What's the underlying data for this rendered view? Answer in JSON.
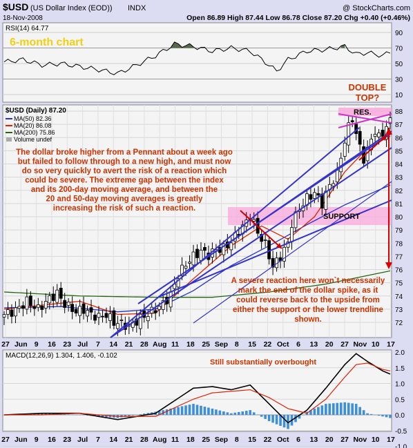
{
  "header": {
    "symbol": "$USD",
    "name": "(US Dollar Index (EOD))",
    "exchange": "INDX",
    "date": "18-Nov-2008",
    "copyright": "@ StockCharts.com",
    "ohlc": "Open 86.89  High 87.44  Low 86.78  Close 87.20  Chg +0.40 (+0.46%)"
  },
  "colors": {
    "background": "#dcdcf2",
    "panel": "#f4f4f4",
    "trendline": "#3333cc",
    "red_arrow": "#dd0000",
    "annotation": "#cc3300",
    "zone": "#f9a8dc",
    "ma50": "#2233cc",
    "ma20": "#dd2200",
    "ma200": "#226611",
    "histogram": "#3d8fd9"
  },
  "rsi_panel": {
    "label": "RSI(14) 64.77",
    "title_note": "6-month chart",
    "ticks": [
      90,
      70,
      50,
      30,
      10
    ]
  },
  "price_panel": {
    "label": "$USD (Daily) 87.20",
    "legend": [
      "MA(50) 82.36",
      "MA(20) 86.08",
      "MA(200) 75.86",
      "Volume undef"
    ],
    "y_ticks": [
      88,
      87,
      86,
      85,
      84,
      83,
      82,
      81,
      80,
      79,
      78,
      77,
      76,
      75,
      74,
      73,
      72
    ],
    "double_top": "DOUBLE TOP?",
    "res_label": "RES.",
    "support_label": "SUPPORT",
    "commentary": [
      "The dollar broke higher from a Pennant about a week ago",
      "but failed to follow through to a new high, and must now",
      "do so very quickly to avert the risk of a reaction which",
      "could be severe. The extreme gap between the index",
      "and its 200-day moving average, and between the",
      "20 and 50-day moving averages is greatly",
      "increasing the risk of such a reaction."
    ],
    "reaction_note": [
      "A severe reaction here won`t necessarily",
      "mark the end of the dollar spike, as it",
      "could reverse back to the upside from",
      "either the support or the lower trendline",
      "shown."
    ]
  },
  "macd_panel": {
    "label": "MACD(12,26,9) 1.304, 1.406, -0.102",
    "note": "Still substantially overbought",
    "ticks": [
      "2.0",
      "1.5",
      "1.0",
      "0.5",
      "0.0",
      "-0.5",
      "-1.0"
    ]
  },
  "x_axis_labels": [
    "27",
    "Jun",
    "9",
    "16",
    "23",
    "Jul",
    "7",
    "14",
    "21",
    "28",
    "Aug",
    "11",
    "18",
    "25",
    "Sep",
    "8",
    "15",
    "22",
    "Oct",
    "6",
    "13",
    "20",
    "27",
    "Nov",
    "10",
    "17"
  ],
  "chart_data": {
    "type": "candlestick",
    "title": "$USD (Daily) 87.20",
    "period": "6-month chart",
    "ylim": [
      71,
      88.5
    ],
    "series": [
      {
        "name": "$USD close",
        "points": [
          [
            0,
            72.6
          ],
          [
            3,
            72.9
          ],
          [
            6,
            73.6
          ],
          [
            9,
            73.0
          ],
          [
            12,
            73.8
          ],
          [
            14,
            74.2
          ],
          [
            16,
            73.4
          ],
          [
            19,
            72.8
          ],
          [
            21,
            73.0
          ],
          [
            23,
            72.6
          ],
          [
            25,
            72.4
          ],
          [
            27,
            72.6
          ],
          [
            29,
            72.0
          ],
          [
            31,
            71.9
          ],
          [
            33,
            71.7
          ],
          [
            36,
            72.3
          ],
          [
            39,
            72.8
          ],
          [
            42,
            73.4
          ],
          [
            44,
            74.1
          ],
          [
            46,
            75.6
          ],
          [
            48,
            76.4
          ],
          [
            50,
            77.0
          ],
          [
            52,
            77.4
          ],
          [
            54,
            77.1
          ],
          [
            56,
            77.5
          ],
          [
            58,
            77.6
          ],
          [
            60,
            78.1
          ],
          [
            62,
            78.9
          ],
          [
            64,
            79.6
          ],
          [
            65,
            80.1
          ],
          [
            66,
            79.5
          ],
          [
            67,
            78.8
          ],
          [
            69,
            77.9
          ],
          [
            71,
            76.2
          ],
          [
            73,
            77.0
          ],
          [
            75,
            78.0
          ],
          [
            76,
            79.5
          ],
          [
            78,
            80.6
          ],
          [
            80,
            81.4
          ],
          [
            82,
            81.8
          ],
          [
            84,
            81.0
          ],
          [
            86,
            82.4
          ],
          [
            88,
            83.2
          ],
          [
            89,
            84.6
          ],
          [
            90,
            85.7
          ],
          [
            91,
            86.8
          ],
          [
            92,
            87.5
          ],
          [
            93,
            86.2
          ],
          [
            94,
            85.3
          ],
          [
            95,
            84.4
          ],
          [
            96,
            85.0
          ],
          [
            97,
            85.9
          ],
          [
            98,
            86.5
          ],
          [
            99,
            86.0
          ],
          [
            100,
            86.3
          ],
          [
            101,
            86.9
          ],
          [
            102,
            87.2
          ]
        ]
      },
      {
        "name": "MA(50) 82.36",
        "points": [
          [
            0,
            73.1
          ],
          [
            15,
            73.2
          ],
          [
            30,
            72.8
          ],
          [
            40,
            73.0
          ],
          [
            50,
            74.4
          ],
          [
            60,
            76.3
          ],
          [
            70,
            77.8
          ],
          [
            80,
            79.4
          ],
          [
            90,
            80.9
          ],
          [
            102,
            82.4
          ]
        ]
      },
      {
        "name": "MA(20) 86.08",
        "points": [
          [
            0,
            73.0
          ],
          [
            10,
            73.3
          ],
          [
            20,
            73.6
          ],
          [
            30,
            72.6
          ],
          [
            40,
            72.7
          ],
          [
            50,
            75.3
          ],
          [
            60,
            77.8
          ],
          [
            68,
            79.3
          ],
          [
            75,
            78.3
          ],
          [
            82,
            80.0
          ],
          [
            90,
            83.4
          ],
          [
            96,
            85.2
          ],
          [
            102,
            86.1
          ]
        ]
      },
      {
        "name": "MA(200) 75.86",
        "points": [
          [
            0,
            74.3
          ],
          [
            20,
            74.0
          ],
          [
            40,
            73.9
          ],
          [
            55,
            73.9
          ],
          [
            70,
            74.3
          ],
          [
            85,
            74.9
          ],
          [
            102,
            75.9
          ]
        ]
      }
    ],
    "rsi": [
      [
        0,
        52
      ],
      [
        5,
        55
      ],
      [
        10,
        48
      ],
      [
        15,
        50
      ],
      [
        20,
        46
      ],
      [
        25,
        42
      ],
      [
        30,
        37
      ],
      [
        35,
        48
      ],
      [
        40,
        60
      ],
      [
        45,
        75
      ],
      [
        50,
        72
      ],
      [
        55,
        66
      ],
      [
        60,
        70
      ],
      [
        65,
        66
      ],
      [
        70,
        48
      ],
      [
        72,
        40
      ],
      [
        75,
        55
      ],
      [
        80,
        66
      ],
      [
        85,
        68
      ],
      [
        90,
        72
      ],
      [
        93,
        62
      ],
      [
        96,
        64
      ],
      [
        100,
        60
      ],
      [
        102,
        65
      ]
    ],
    "macd": [
      [
        0,
        0.0
      ],
      [
        10,
        0.05
      ],
      [
        20,
        0.05
      ],
      [
        30,
        -0.15
      ],
      [
        40,
        0.05
      ],
      [
        50,
        0.85
      ],
      [
        55,
        0.9
      ],
      [
        60,
        0.8
      ],
      [
        65,
        0.95
      ],
      [
        70,
        0.35
      ],
      [
        75,
        -0.25
      ],
      [
        80,
        0.15
      ],
      [
        85,
        0.85
      ],
      [
        90,
        1.6
      ],
      [
        93,
        1.95
      ],
      [
        96,
        1.7
      ],
      [
        100,
        1.4
      ],
      [
        102,
        1.3
      ]
    ],
    "signal": [
      [
        0,
        0.0
      ],
      [
        10,
        0.0
      ],
      [
        20,
        0.05
      ],
      [
        30,
        -0.05
      ],
      [
        40,
        -0.05
      ],
      [
        50,
        0.5
      ],
      [
        55,
        0.7
      ],
      [
        60,
        0.75
      ],
      [
        65,
        0.8
      ],
      [
        70,
        0.55
      ],
      [
        75,
        0.2
      ],
      [
        80,
        0.05
      ],
      [
        85,
        0.5
      ],
      [
        90,
        1.2
      ],
      [
        93,
        1.6
      ],
      [
        96,
        1.65
      ],
      [
        100,
        1.45
      ],
      [
        102,
        1.4
      ]
    ]
  }
}
